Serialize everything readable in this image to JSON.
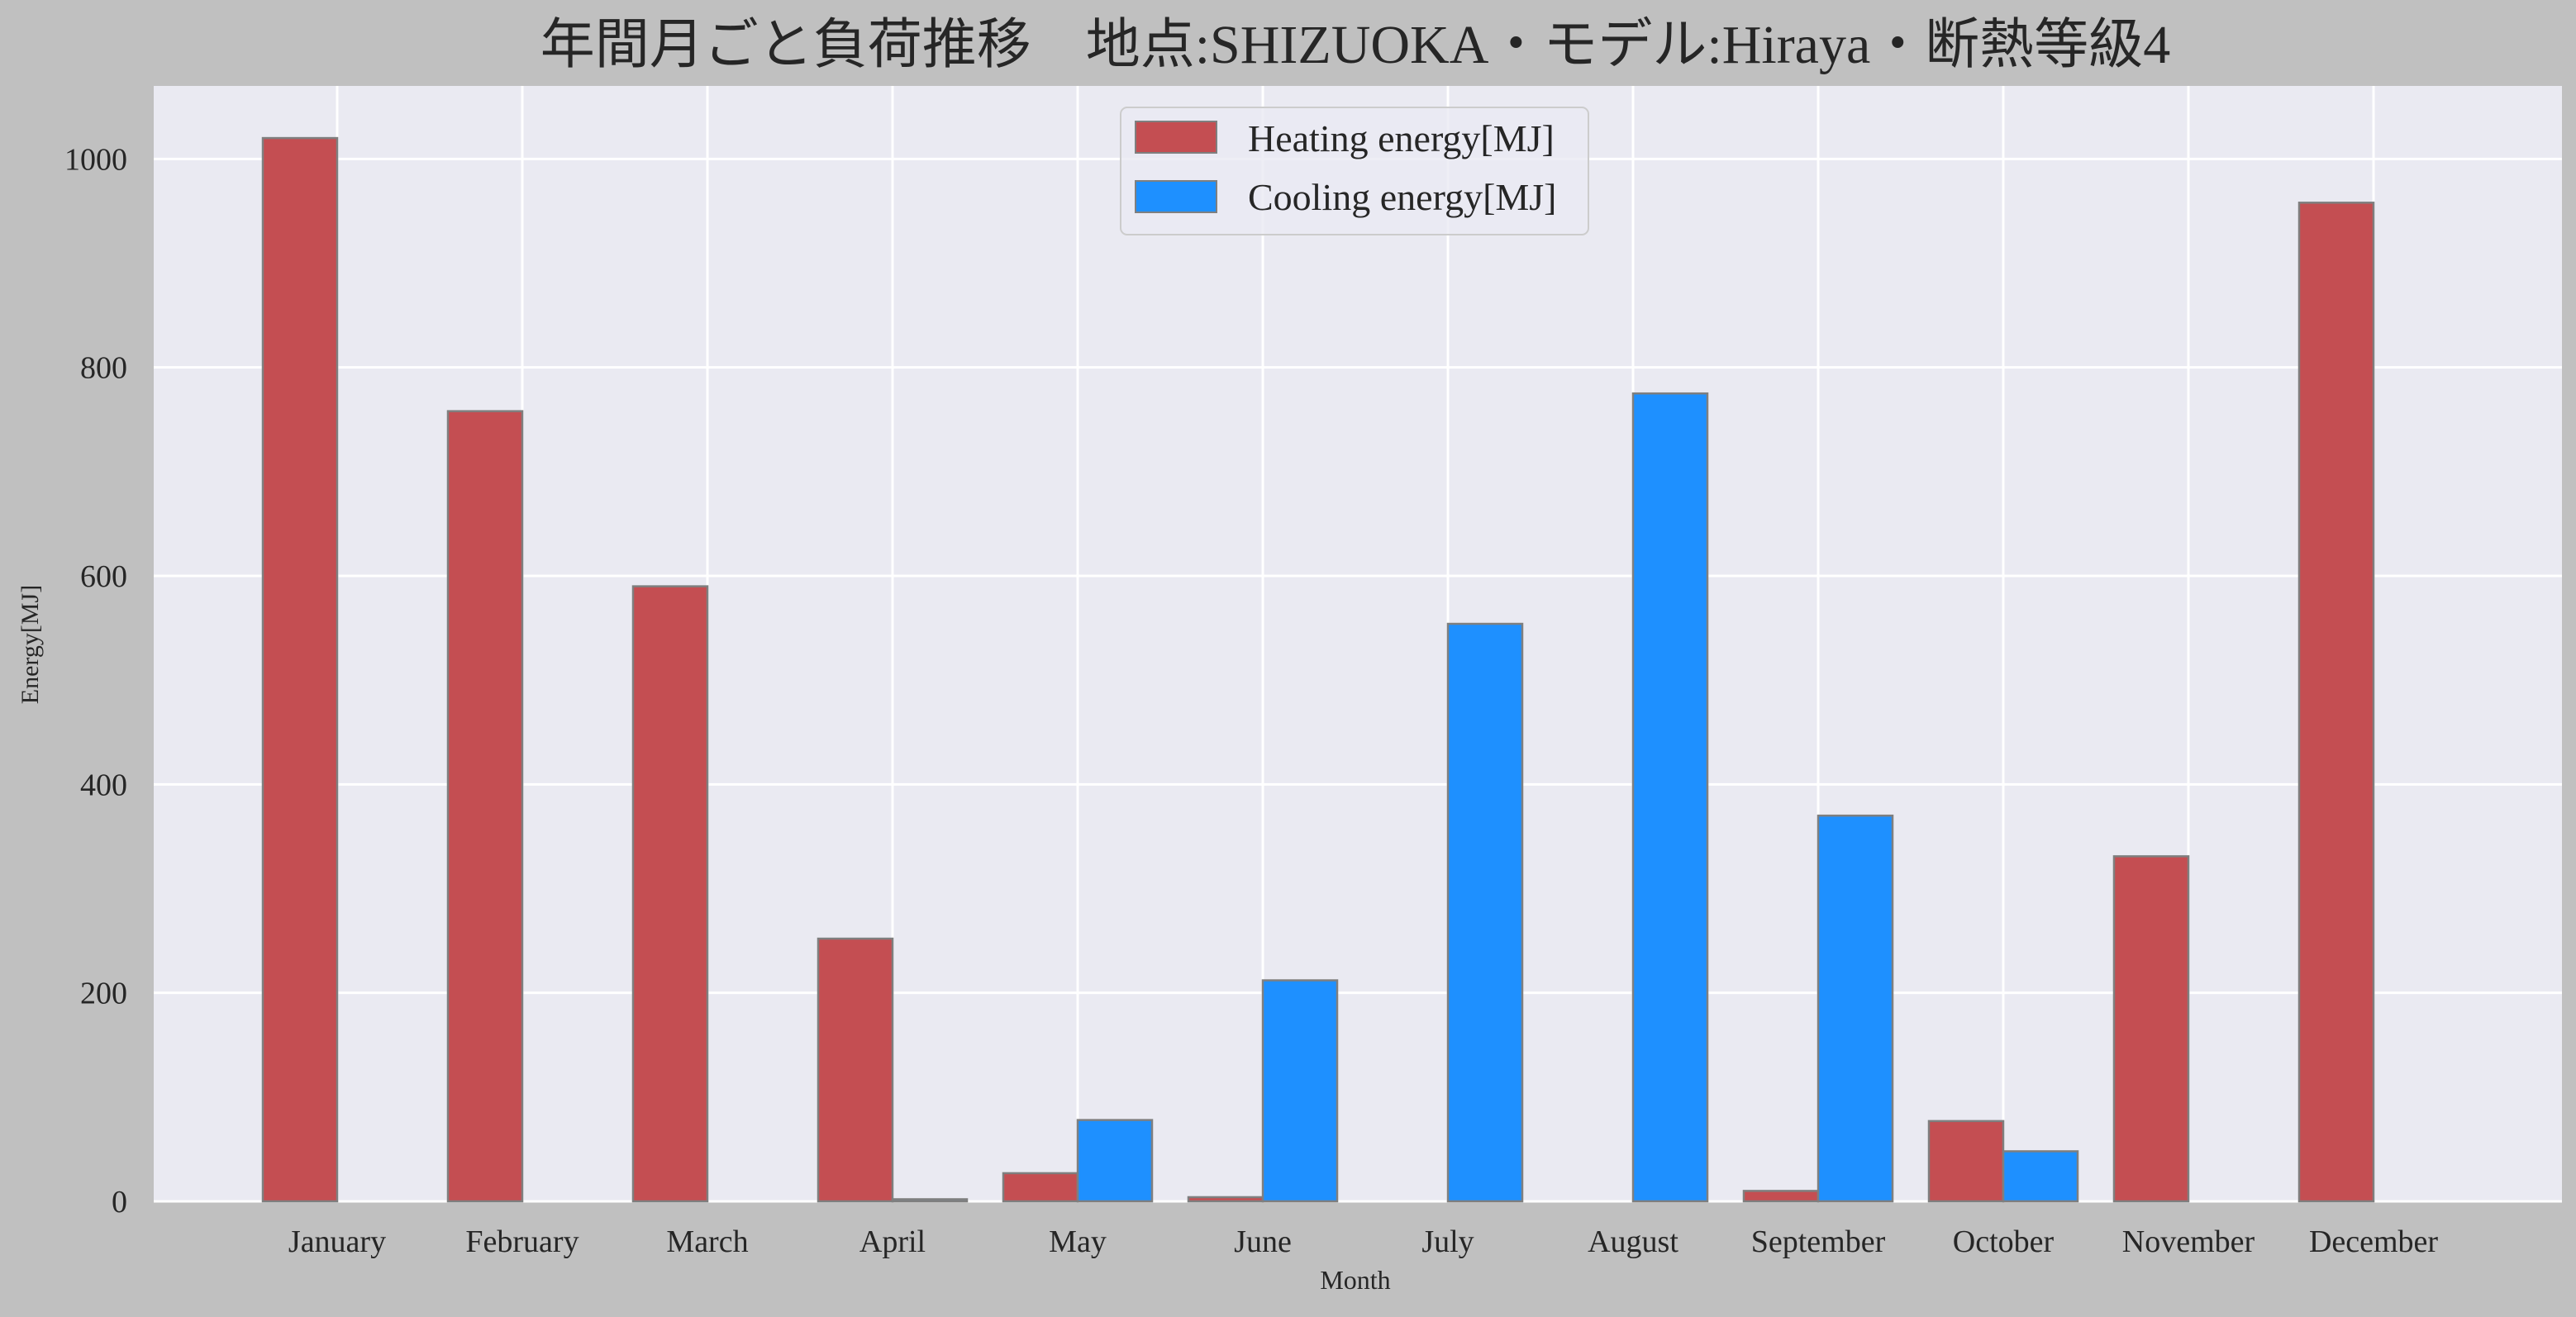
{
  "chart_data": {
    "type": "bar",
    "title": "年間月ごと負荷推移　地点:SHIZUOKA・モデル:Hiraya・断熱等級4",
    "xlabel": "Month",
    "ylabel": "Energy[MJ]",
    "categories": [
      "January",
      "February",
      "March",
      "April",
      "May",
      "June",
      "July",
      "August",
      "September",
      "October",
      "November",
      "December"
    ],
    "series": [
      {
        "name": "Heating energy[MJ]",
        "color": "#c44e52",
        "values": [
          1020,
          758,
          590,
          252,
          27,
          4,
          0,
          0,
          10,
          77,
          331,
          958
        ]
      },
      {
        "name": "Cooling energy[MJ]",
        "color": "#1e90ff",
        "values": [
          0,
          0,
          0,
          2,
          78,
          212,
          554,
          775,
          370,
          48,
          0,
          0
        ]
      }
    ],
    "yticks": [
      0,
      200,
      400,
      600,
      800,
      1000
    ],
    "ylim": [
      0,
      1070
    ],
    "grid": true,
    "legend_position": "top-center"
  }
}
